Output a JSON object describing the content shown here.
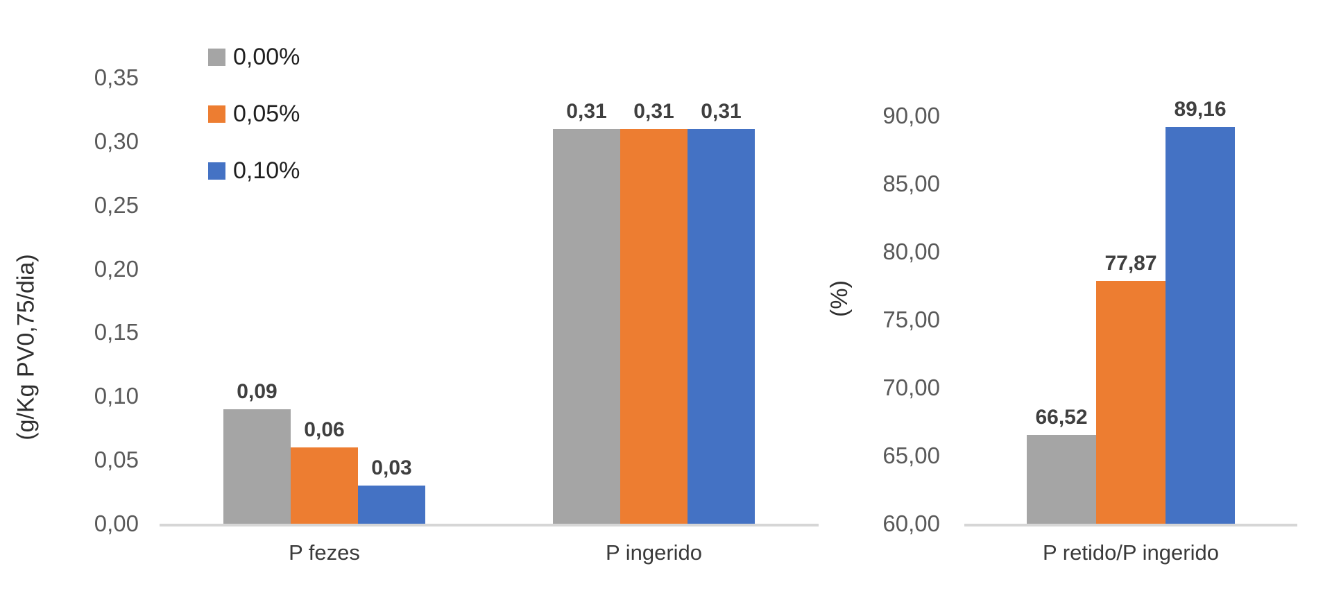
{
  "chart_data": [
    {
      "type": "bar",
      "title": "",
      "xlabel": "",
      "ylabel": "(g/Kg PV0,75/dia)",
      "categories": [
        "P fezes",
        "P ingerido"
      ],
      "series": [
        {
          "name": "0,00%",
          "color": "#A5A5A5",
          "values": [
            0.09,
            0.31
          ]
        },
        {
          "name": "0,05%",
          "color": "#ED7D31",
          "values": [
            0.06,
            0.31
          ]
        },
        {
          "name": "0,10%",
          "color": "#4472C4",
          "values": [
            0.03,
            0.31
          ]
        }
      ],
      "data_labels": [
        [
          "0,09",
          "0,06",
          "0,03"
        ],
        [
          "0,31",
          "0,31",
          "0,31"
        ]
      ],
      "ylim": [
        0,
        0.35
      ],
      "ytick_step": 0.05,
      "ytick_labels": [
        "0,00",
        "0,05",
        "0,10",
        "0,15",
        "0,20",
        "0,25",
        "0,30",
        "0,35"
      ],
      "grid": false,
      "legend_position": "top-left-vertical"
    },
    {
      "type": "bar",
      "title": "",
      "xlabel": "",
      "ylabel": "(%)",
      "categories": [
        "P retido/P ingerido"
      ],
      "series": [
        {
          "name": "0,00%",
          "color": "#A5A5A5",
          "values": [
            66.52
          ]
        },
        {
          "name": "0,05%",
          "color": "#ED7D31",
          "values": [
            77.87
          ]
        },
        {
          "name": "0,10%",
          "color": "#4472C4",
          "values": [
            89.16
          ]
        }
      ],
      "data_labels": [
        [
          "66,52",
          "77,87",
          "89,16"
        ]
      ],
      "ylim": [
        60,
        90
      ],
      "ytick_step": 5,
      "ytick_labels": [
        "60,00",
        "65,00",
        "70,00",
        "75,00",
        "80,00",
        "85,00",
        "90,00"
      ],
      "grid": false,
      "legend_position": "none"
    }
  ],
  "style": {
    "axis_line_color": "#d6d6d6",
    "tick_label_color": "#595959",
    "data_label_color": "#3f3f3f",
    "category_label_color": "#3a3a3a",
    "legend_text_color": "#1f1f1f",
    "background": "#ffffff"
  }
}
